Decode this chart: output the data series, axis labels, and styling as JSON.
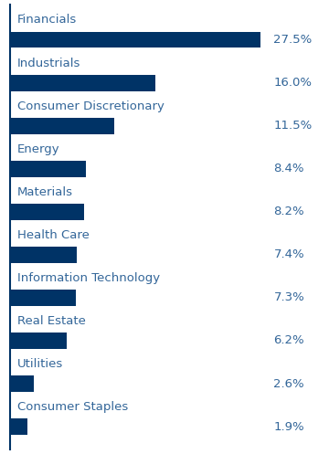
{
  "categories": [
    "Financials",
    "Industrials",
    "Consumer Discretionary",
    "Energy",
    "Materials",
    "Health Care",
    "Information Technology",
    "Real Estate",
    "Utilities",
    "Consumer Staples"
  ],
  "values": [
    27.5,
    16.0,
    11.5,
    8.4,
    8.2,
    7.4,
    7.3,
    6.2,
    2.6,
    1.9
  ],
  "labels": [
    "27.5%",
    "16.0%",
    "11.5%",
    "8.4%",
    "8.2%",
    "7.4%",
    "7.3%",
    "6.2%",
    "2.6%",
    "1.9%"
  ],
  "bar_color": "#003366",
  "label_color": "#336699",
  "category_color": "#336699",
  "background_color": "#ffffff",
  "bar_height": 0.38,
  "label_fontsize": 9.5,
  "category_fontsize": 9.5
}
